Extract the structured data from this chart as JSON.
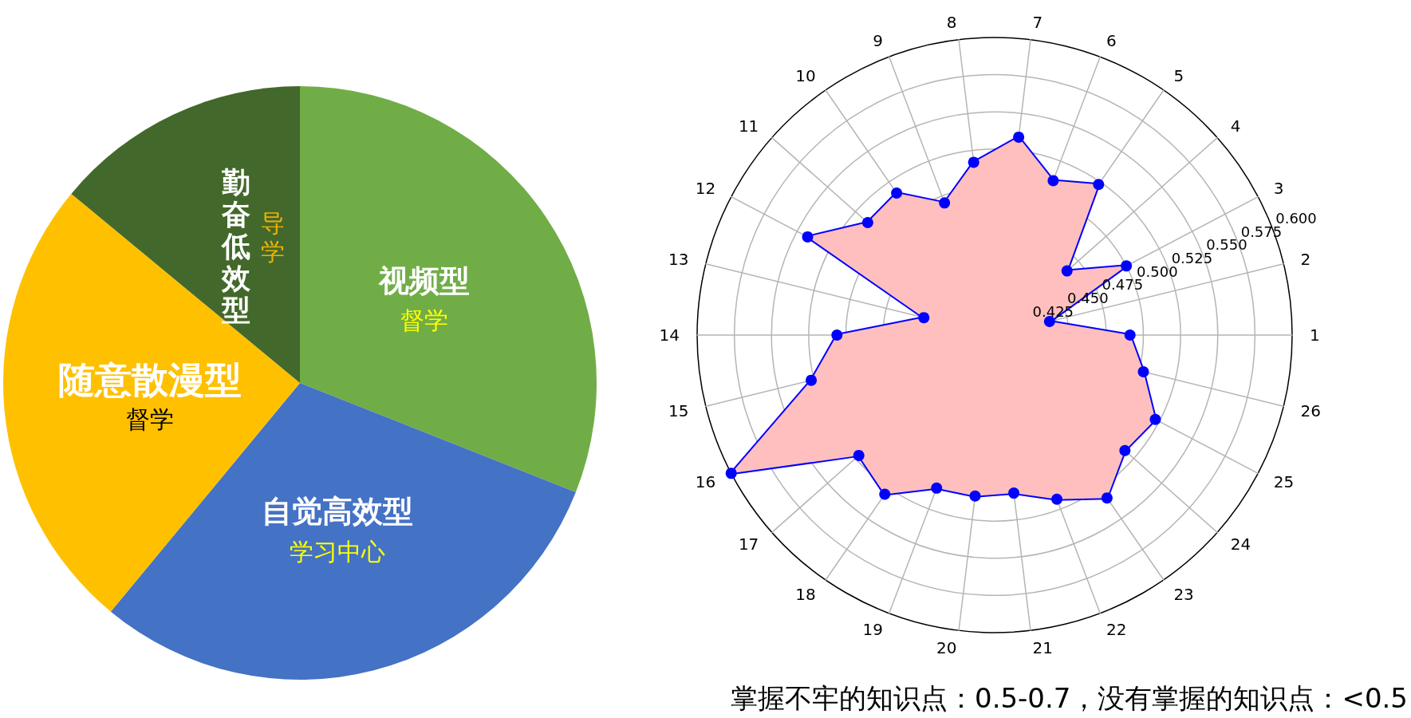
{
  "chart_data": [
    {
      "type": "pie",
      "categories": [
        "视频型",
        "自觉高效型",
        "随意散漫型",
        "勤奋低效型"
      ],
      "values": [
        31,
        30,
        25,
        14
      ],
      "colors": [
        "#70ad47",
        "#4472c4",
        "#ffc000",
        "#43682b"
      ],
      "annotations": [
        "督学",
        "学习中心",
        "督学",
        "导学"
      ]
    },
    {
      "type": "radar",
      "categories": [
        "7",
        "6",
        "5",
        "4",
        "3",
        "2",
        "1",
        "26",
        "25",
        "24",
        "23",
        "22",
        "21",
        "20",
        "19",
        "18",
        "17",
        "16",
        "15",
        "14",
        "13",
        "12",
        "11",
        "10",
        "9",
        "8"
      ],
      "series": [
        {
          "color": "#0000ff",
          "values": [
            0.534,
            0.511,
            0.523,
            0.465,
            0.5,
            0.438,
            0.491,
            0.503,
            0.522,
            0.517,
            0.533,
            0.518,
            0.507,
            0.509,
            0.51,
            0.53,
            0.522,
            0.6,
            0.527,
            0.506,
            0.449,
            0.542,
            0.514,
            0.516,
            0.495,
            0.517
          ]
        }
      ],
      "ylim": [
        0.4,
        0.6
      ],
      "yticks": [
        {
          "value": 0.425,
          "label": "0.425"
        },
        {
          "value": 0.45,
          "label": "0.450"
        },
        {
          "value": 0.475,
          "label": "0.475"
        },
        {
          "value": 0.5,
          "label": "0.500"
        },
        {
          "value": 0.525,
          "label": "0.525"
        },
        {
          "value": 0.55,
          "label": "0.550"
        },
        {
          "value": 0.575,
          "label": "0.575"
        },
        {
          "value": 0.6,
          "label": "0.600"
        }
      ],
      "grid": true,
      "marker": "circle",
      "line_style": "solid",
      "annotations": [
        "掌握不牢的知识点：0.5-0.7，没有掌握的知识点：<0.5"
      ]
    }
  ]
}
